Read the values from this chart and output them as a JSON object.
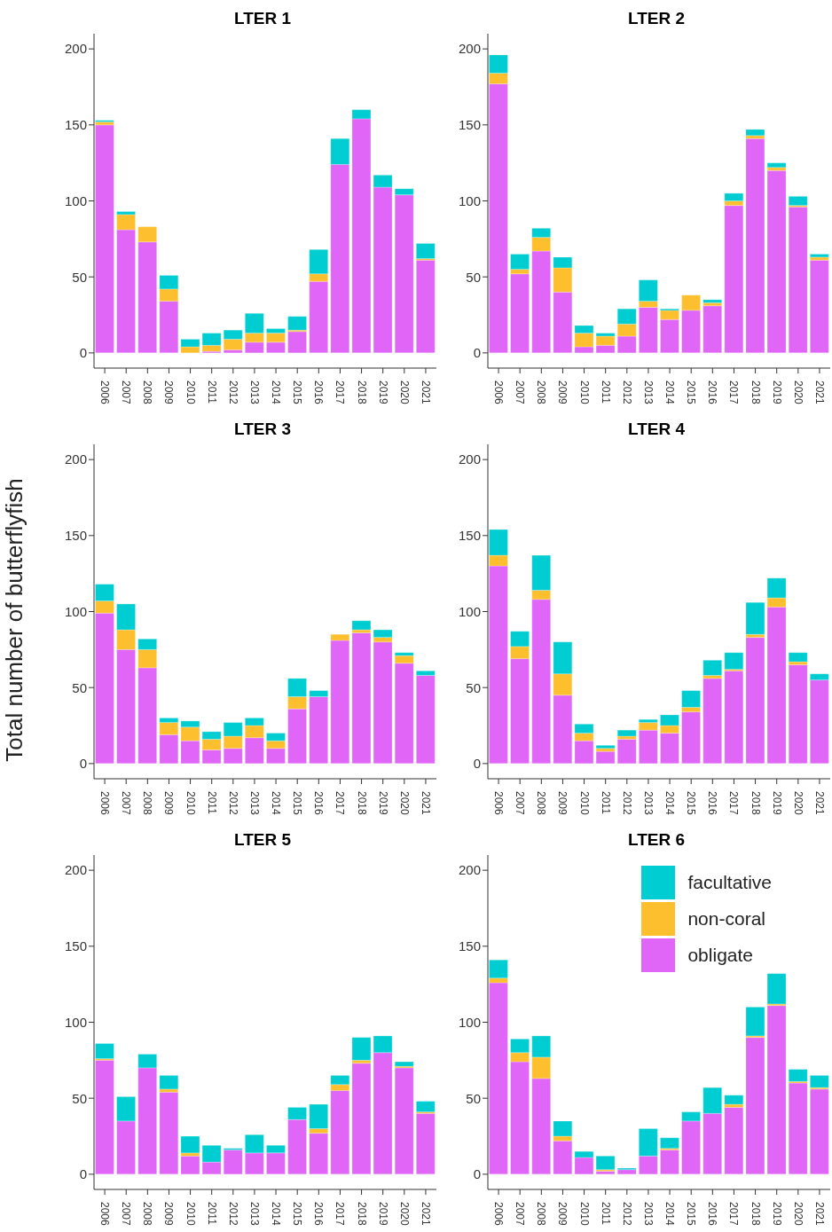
{
  "chart_data": [
    {
      "type": "bar",
      "title": "LTER 1",
      "stacked": true,
      "categories": [
        "2006",
        "2007",
        "2008",
        "2009",
        "2010",
        "2011",
        "2012",
        "2013",
        "2014",
        "2015",
        "2016",
        "2017",
        "2018",
        "2019",
        "2020",
        "2021"
      ],
      "ylim": [
        -10,
        210
      ],
      "yticks": [
        0,
        50,
        100,
        150,
        200
      ],
      "series": [
        {
          "color": "#e066f8",
          "values": [
            150,
            81,
            73,
            34,
            0,
            1,
            2,
            7,
            7,
            14,
            47,
            124,
            154,
            109,
            104,
            61
          ]
        },
        {
          "color": "#fdbf2d",
          "values": [
            2,
            10,
            10,
            8,
            4,
            4,
            7,
            6,
            6,
            1,
            5,
            0,
            0,
            0,
            0,
            1
          ]
        },
        {
          "color": "#00cdd1",
          "values": [
            1,
            2,
            0,
            9,
            5,
            8,
            6,
            13,
            3,
            9,
            16,
            17,
            6,
            8,
            4,
            10
          ]
        }
      ]
    },
    {
      "type": "bar",
      "title": "LTER 2",
      "stacked": true,
      "categories": [
        "2006",
        "2007",
        "2008",
        "2009",
        "2010",
        "2011",
        "2012",
        "2013",
        "2014",
        "2015",
        "2016",
        "2017",
        "2018",
        "2019",
        "2020",
        "2021"
      ],
      "ylim": [
        -10,
        210
      ],
      "yticks": [
        0,
        50,
        100,
        150,
        200
      ],
      "series": [
        {
          "color": "#e066f8",
          "values": [
            177,
            52,
            67,
            40,
            4,
            5,
            11,
            30,
            22,
            28,
            31,
            97,
            141,
            120,
            96,
            61
          ]
        },
        {
          "color": "#fdbf2d",
          "values": [
            7,
            3,
            9,
            16,
            9,
            6,
            8,
            4,
            6,
            10,
            2,
            3,
            2,
            2,
            1,
            2
          ]
        },
        {
          "color": "#00cdd1",
          "values": [
            12,
            10,
            6,
            7,
            5,
            2,
            10,
            14,
            1,
            0,
            2,
            5,
            4,
            3,
            6,
            2
          ]
        }
      ]
    },
    {
      "type": "bar",
      "title": "LTER 3",
      "ylabel": "Total number of butterflyfish",
      "stacked": true,
      "categories": [
        "2006",
        "2007",
        "2008",
        "2009",
        "2010",
        "2011",
        "2012",
        "2013",
        "2014",
        "2015",
        "2016",
        "2017",
        "2018",
        "2019",
        "2020",
        "2021"
      ],
      "ylim": [
        -10,
        210
      ],
      "yticks": [
        0,
        50,
        100,
        150,
        200
      ],
      "series": [
        {
          "color": "#e066f8",
          "values": [
            99,
            75,
            63,
            19,
            15,
            9,
            10,
            17,
            10,
            36,
            44,
            81,
            86,
            80,
            66,
            58
          ]
        },
        {
          "color": "#fdbf2d",
          "values": [
            8,
            13,
            12,
            8,
            9,
            7,
            8,
            8,
            5,
            8,
            0,
            4,
            2,
            3,
            5,
            0
          ]
        },
        {
          "color": "#00cdd1",
          "values": [
            11,
            17,
            7,
            3,
            4,
            5,
            9,
            5,
            5,
            12,
            4,
            0,
            6,
            5,
            2,
            3
          ]
        }
      ]
    },
    {
      "type": "bar",
      "title": "LTER 4",
      "stacked": true,
      "categories": [
        "2006",
        "2007",
        "2008",
        "2009",
        "2010",
        "2011",
        "2012",
        "2013",
        "2014",
        "2015",
        "2016",
        "2017",
        "2018",
        "2019",
        "2020",
        "2021"
      ],
      "ylim": [
        -10,
        210
      ],
      "yticks": [
        0,
        50,
        100,
        150,
        200
      ],
      "series": [
        {
          "color": "#e066f8",
          "values": [
            130,
            69,
            108,
            45,
            15,
            8,
            16,
            22,
            20,
            34,
            56,
            61,
            83,
            103,
            65,
            55
          ]
        },
        {
          "color": "#fdbf2d",
          "values": [
            7,
            8,
            6,
            14,
            5,
            2,
            2,
            5,
            5,
            3,
            2,
            1,
            2,
            6,
            2,
            0
          ]
        },
        {
          "color": "#00cdd1",
          "values": [
            17,
            10,
            23,
            21,
            6,
            2,
            4,
            2,
            7,
            11,
            10,
            11,
            21,
            13,
            6,
            4
          ]
        }
      ]
    },
    {
      "type": "bar",
      "title": "LTER 5",
      "stacked": true,
      "categories": [
        "2006",
        "2007",
        "2008",
        "2009",
        "2010",
        "2011",
        "2012",
        "2013",
        "2014",
        "2015",
        "2016",
        "2017",
        "2018",
        "2019",
        "2020",
        "2021"
      ],
      "ylim": [
        -10,
        210
      ],
      "yticks": [
        0,
        50,
        100,
        150,
        200
      ],
      "series": [
        {
          "color": "#e066f8",
          "values": [
            75,
            35,
            70,
            54,
            12,
            8,
            16,
            14,
            14,
            36,
            27,
            55,
            73,
            80,
            70,
            40
          ]
        },
        {
          "color": "#fdbf2d",
          "values": [
            1,
            0,
            0,
            2,
            2,
            0,
            0,
            0,
            0,
            0,
            3,
            4,
            2,
            0,
            1,
            1
          ]
        },
        {
          "color": "#00cdd1",
          "values": [
            10,
            16,
            9,
            9,
            11,
            11,
            1,
            12,
            5,
            8,
            16,
            6,
            15,
            11,
            3,
            7
          ]
        }
      ]
    },
    {
      "type": "bar",
      "title": "LTER 6",
      "stacked": true,
      "legend": "top right",
      "categories": [
        "2006",
        "2007",
        "2008",
        "2009",
        "2010",
        "2011",
        "2012",
        "2013",
        "2014",
        "2015",
        "2016",
        "2017",
        "2018",
        "2019",
        "2020",
        "2021"
      ],
      "ylim": [
        -10,
        210
      ],
      "yticks": [
        0,
        50,
        100,
        150,
        200
      ],
      "series": [
        {
          "name": "obligate",
          "color": "#e066f8",
          "values": [
            126,
            74,
            63,
            22,
            11,
            2,
            3,
            12,
            16,
            35,
            40,
            44,
            90,
            111,
            60,
            56
          ]
        },
        {
          "name": "non-coral",
          "color": "#fdbf2d",
          "values": [
            3,
            6,
            14,
            3,
            0,
            1,
            0,
            0,
            1,
            0,
            0,
            2,
            1,
            1,
            1,
            1
          ]
        },
        {
          "name": "facultative",
          "color": "#00cdd1",
          "values": [
            12,
            9,
            14,
            10,
            4,
            9,
            1,
            18,
            7,
            6,
            17,
            6,
            19,
            20,
            8,
            8
          ]
        }
      ]
    }
  ]
}
